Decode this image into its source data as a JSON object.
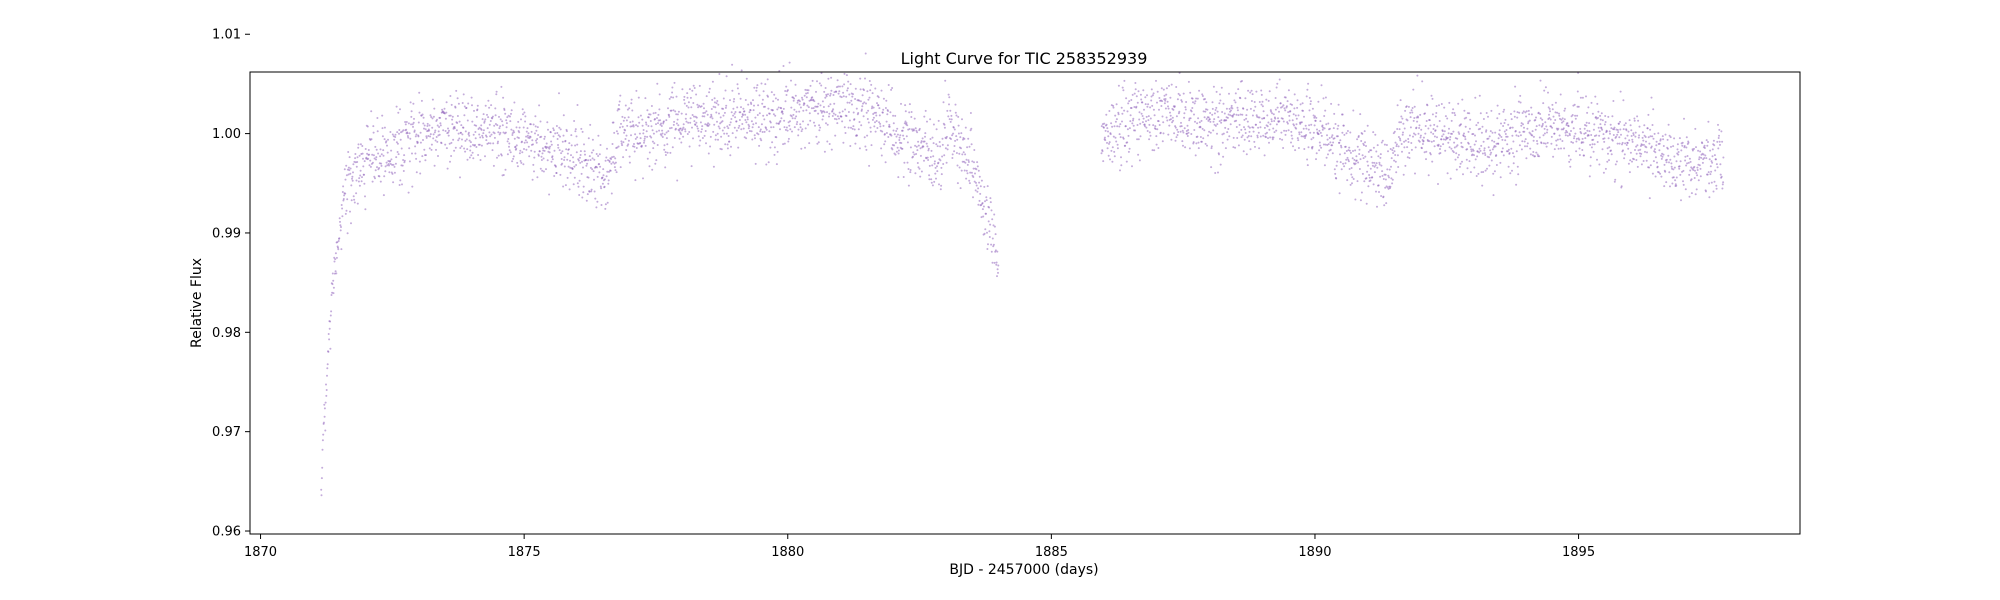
{
  "chart_data": {
    "type": "scatter",
    "title": "Light Curve for TIC 258352939",
    "xlabel": "BJD - 2457000 (days)",
    "ylabel": "Relative Flux",
    "xlim": [
      1869.8,
      1899.2
    ],
    "ylim": [
      0.9597,
      1.0062
    ],
    "x_ticks": [
      1870,
      1875,
      1880,
      1885,
      1890,
      1895
    ],
    "y_ticks": [
      0.96,
      0.97,
      0.98,
      0.99,
      1.0,
      1.01
    ],
    "x_tick_labels": [
      "1870",
      "1875",
      "1880",
      "1885",
      "1890",
      "1895"
    ],
    "y_tick_labels": [
      "0.96",
      "0.97",
      "0.98",
      "0.99",
      "1.00",
      "1.01"
    ],
    "grid": false,
    "marker_color": "#9467bd",
    "series": [
      {
        "name": "",
        "x_range": [
          1871.15,
          1897.75
        ],
        "trend": [
          [
            1871.15,
            0.965
          ],
          [
            1871.35,
            0.984
          ],
          [
            1871.6,
            0.9945
          ],
          [
            1872.0,
            0.997
          ],
          [
            1872.5,
            0.998
          ],
          [
            1873.0,
            1.0
          ],
          [
            1873.5,
            1.0005
          ],
          [
            1874.0,
            1.0005
          ],
          [
            1874.5,
            1.0005
          ],
          [
            1875.0,
            0.9995
          ],
          [
            1875.5,
            0.9985
          ],
          [
            1876.0,
            0.9975
          ],
          [
            1876.6,
            0.9955
          ],
          [
            1876.8,
            1.0
          ],
          [
            1877.0,
            1.0
          ],
          [
            1877.5,
            1.0005
          ],
          [
            1878.0,
            1.0015
          ],
          [
            1878.5,
            1.0015
          ],
          [
            1879.0,
            1.001
          ],
          [
            1879.5,
            1.0015
          ],
          [
            1880.0,
            1.002
          ],
          [
            1880.5,
            1.0025
          ],
          [
            1881.0,
            1.0025
          ],
          [
            1881.5,
            1.002
          ],
          [
            1882.0,
            1.0005
          ],
          [
            1882.5,
            0.9985
          ],
          [
            1882.9,
            0.997
          ],
          [
            1883.05,
            1.0015
          ],
          [
            1883.3,
            0.999
          ],
          [
            1883.6,
            0.995
          ],
          [
            1883.8,
            0.991
          ],
          [
            1883.95,
            0.9885
          ],
          [
            1886.0,
            0.9995
          ],
          [
            1886.5,
            1.0015
          ],
          [
            1887.0,
            1.002
          ],
          [
            1887.5,
            1.0015
          ],
          [
            1888.0,
            1.001
          ],
          [
            1888.5,
            1.0015
          ],
          [
            1889.0,
            1.0015
          ],
          [
            1889.5,
            1.0015
          ],
          [
            1890.0,
            1.0005
          ],
          [
            1890.5,
            0.9985
          ],
          [
            1891.0,
            0.997
          ],
          [
            1891.4,
            0.9955
          ],
          [
            1891.6,
            1.0
          ],
          [
            1892.0,
            1.0005
          ],
          [
            1892.5,
            0.9995
          ],
          [
            1893.0,
            0.9985
          ],
          [
            1893.5,
            0.999
          ],
          [
            1894.0,
            1.0
          ],
          [
            1894.5,
            1.001
          ],
          [
            1895.0,
            1.0005
          ],
          [
            1895.5,
            1.0
          ],
          [
            1896.0,
            0.9995
          ],
          [
            1896.5,
            0.998
          ],
          [
            1897.0,
            0.997
          ],
          [
            1897.75,
            0.9975
          ]
        ],
        "gap": [
          1884.0,
          1885.95
        ],
        "scatter_sigma": 0.0018
      }
    ]
  }
}
